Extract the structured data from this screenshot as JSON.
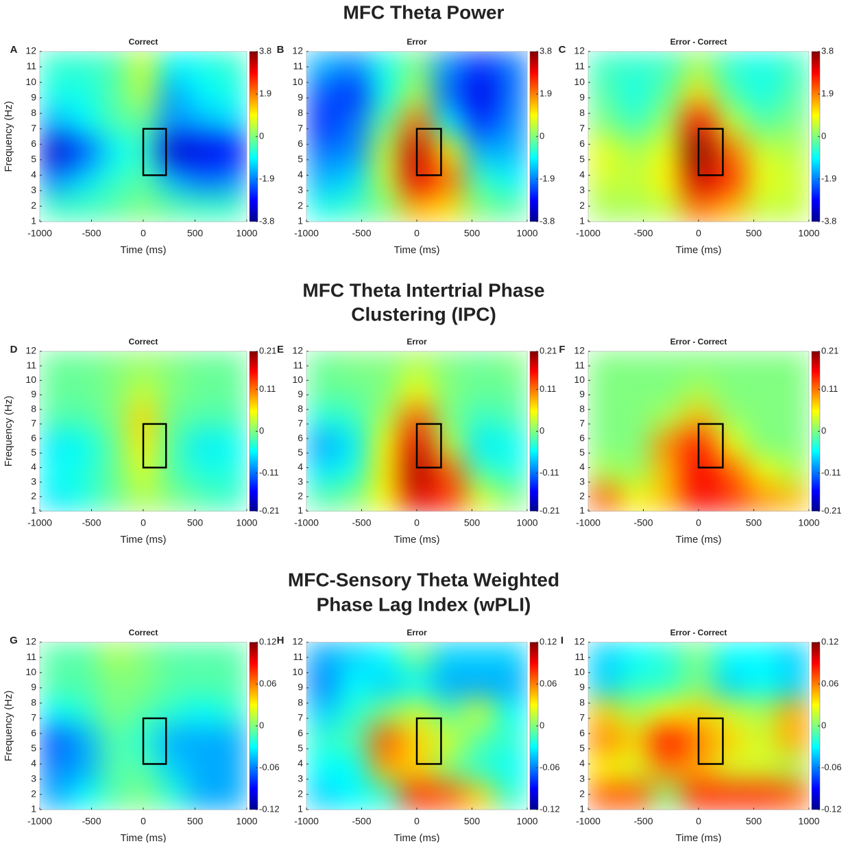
{
  "sections": [
    {
      "title": [
        "MFC Theta Power"
      ]
    },
    {
      "title": [
        "MFC Theta Intertrial Phase",
        "Clustering (IPC)"
      ]
    },
    {
      "title": [
        "MFC-Sensory Theta Weighted",
        "Phase Lag Index (wPLI)"
      ]
    }
  ],
  "chart_data": [
    {
      "type": "heatmap",
      "panel": "A",
      "title": "Correct",
      "xlabel": "Time (ms)",
      "ylabel": "Frequency (Hz)",
      "colormap": "jet",
      "xlim": [
        -1000,
        1000
      ],
      "xticks": [
        -1000,
        -500,
        0,
        500,
        1000
      ],
      "ylim": [
        1,
        12
      ],
      "yticks": [
        1,
        2,
        3,
        4,
        5,
        6,
        7,
        8,
        9,
        10,
        11,
        12
      ],
      "clim": [
        -3.8,
        3.8
      ],
      "cticks": [
        -3.8,
        -1.9,
        0,
        1.9,
        3.8
      ],
      "roi": {
        "x": [
          0,
          220
        ],
        "y": [
          4,
          7
        ]
      },
      "z": [
        [
          -0.5,
          -0.5,
          -0.3,
          0,
          -0.3,
          -0.5,
          -0.5
        ],
        [
          -1.8,
          -1.2,
          -0.6,
          -0.3,
          -1.5,
          -2,
          -1.8
        ],
        [
          -3.2,
          -2.2,
          -1,
          -0.6,
          -3.2,
          -3,
          -2.8
        ],
        [
          -1.5,
          -1,
          -0.4,
          -0.2,
          -1.8,
          -1.5,
          -1.2
        ],
        [
          -0.8,
          -0.8,
          -0.3,
          0.4,
          -1.6,
          -1,
          -0.8
        ],
        [
          -0.6,
          -0.6,
          -0.4,
          0.6,
          -1,
          -0.8,
          -0.6
        ]
      ]
    },
    {
      "type": "heatmap",
      "panel": "B",
      "title": "Error",
      "xlabel": "Time (ms)",
      "colormap": "jet",
      "xlim": [
        -1000,
        1000
      ],
      "xticks": [
        -1000,
        -500,
        0,
        500,
        1000
      ],
      "ylim": [
        1,
        12
      ],
      "yticks": [
        1,
        2,
        3,
        4,
        5,
        6,
        7,
        8,
        9,
        10,
        11,
        12
      ],
      "clim": [
        -3.8,
        3.8
      ],
      "cticks": [
        -3.8,
        -1.9,
        0,
        1.9,
        3.8
      ],
      "roi": {
        "x": [
          0,
          220
        ],
        "y": [
          4,
          7
        ]
      },
      "z": [
        [
          -0.8,
          -0.5,
          0,
          1.5,
          1.2,
          0,
          -0.3
        ],
        [
          -1.5,
          -1.2,
          0.5,
          3,
          2,
          -0.5,
          -1
        ],
        [
          -2,
          -1.8,
          0.5,
          3.3,
          1,
          -1.5,
          -1.5
        ],
        [
          -2.5,
          -2,
          -0.2,
          2,
          -1,
          -2.5,
          -1.8
        ],
        [
          -2.2,
          -2.5,
          -0.8,
          0.4,
          -2,
          -3,
          -2
        ],
        [
          -1.5,
          -1.8,
          -0.8,
          0,
          -1.8,
          -2.5,
          -2
        ]
      ]
    },
    {
      "type": "heatmap",
      "panel": "C",
      "title": "Error - Correct",
      "xlabel": "Time (ms)",
      "colormap": "jet",
      "xlim": [
        -1000,
        1000
      ],
      "xticks": [
        -1000,
        -500,
        0,
        500,
        1000
      ],
      "ylim": [
        1,
        12
      ],
      "yticks": [
        1,
        2,
        3,
        4,
        5,
        6,
        7,
        8,
        9,
        10,
        11,
        12
      ],
      "clim": [
        -3.8,
        3.8
      ],
      "cticks": [
        -3.8,
        -1.9,
        0,
        1.9,
        3.8
      ],
      "roi": {
        "x": [
          0,
          220
        ],
        "y": [
          4,
          7
        ]
      },
      "z": [
        [
          0.3,
          0.3,
          0.5,
          2,
          1.5,
          0.5,
          0.5
        ],
        [
          0.6,
          0.5,
          1,
          3.2,
          2.5,
          0.8,
          0.6
        ],
        [
          0.8,
          0.3,
          0.8,
          3.8,
          2,
          0.6,
          0.4
        ],
        [
          0,
          -0.5,
          0.3,
          2.8,
          0.6,
          -0.3,
          0
        ],
        [
          -0.3,
          -0.8,
          -0.2,
          1.2,
          -0.3,
          -0.8,
          -0.3
        ],
        [
          -0.5,
          -0.6,
          -0.5,
          0.3,
          -0.6,
          -0.8,
          -0.5
        ]
      ]
    },
    {
      "type": "heatmap",
      "panel": "D",
      "title": "Correct",
      "xlabel": "Time (ms)",
      "ylabel": "Frequency (Hz)",
      "colormap": "jet",
      "xlim": [
        -1000,
        1000
      ],
      "xticks": [
        -1000,
        -500,
        0,
        500,
        1000
      ],
      "ylim": [
        1,
        12
      ],
      "yticks": [
        1,
        2,
        3,
        4,
        5,
        6,
        7,
        8,
        9,
        10,
        11,
        12
      ],
      "clim": [
        -0.21,
        0.21
      ],
      "cticks": [
        -0.21,
        -0.11,
        0,
        0.11,
        0.21
      ],
      "roi": {
        "x": [
          0,
          220
        ],
        "y": [
          4,
          7
        ]
      },
      "z": [
        [
          -0.06,
          -0.04,
          -0.01,
          0.02,
          0,
          -0.02,
          -0.03
        ],
        [
          -0.05,
          -0.04,
          -0.01,
          0.04,
          -0.02,
          -0.04,
          -0.04
        ],
        [
          -0.06,
          -0.05,
          -0.01,
          0.06,
          -0.02,
          -0.06,
          -0.05
        ],
        [
          -0.02,
          -0.02,
          0,
          0.07,
          -0.01,
          -0.02,
          -0.02
        ],
        [
          -0.01,
          -0.01,
          0,
          0.03,
          0,
          -0.01,
          -0.01
        ],
        [
          -0.01,
          -0.01,
          0,
          0.01,
          0,
          -0.01,
          -0.01
        ]
      ]
    },
    {
      "type": "heatmap",
      "panel": "E",
      "title": "Error",
      "xlabel": "Time (ms)",
      "colormap": "jet",
      "xlim": [
        -1000,
        1000
      ],
      "xticks": [
        -1000,
        -500,
        0,
        500,
        1000
      ],
      "ylim": [
        1,
        12
      ],
      "yticks": [
        1,
        2,
        3,
        4,
        5,
        6,
        7,
        8,
        9,
        10,
        11,
        12
      ],
      "clim": [
        -0.21,
        0.21
      ],
      "cticks": [
        -0.21,
        -0.11,
        0,
        0.11,
        0.21
      ],
      "roi": {
        "x": [
          0,
          220
        ],
        "y": [
          4,
          7
        ]
      },
      "z": [
        [
          -0.02,
          0,
          0.05,
          0.17,
          0.14,
          0.04,
          0
        ],
        [
          -0.06,
          -0.04,
          0.06,
          0.19,
          0.12,
          -0.02,
          -0.04
        ],
        [
          -0.09,
          -0.06,
          0.05,
          0.17,
          0.03,
          -0.06,
          -0.05
        ],
        [
          -0.04,
          -0.03,
          0.02,
          0.12,
          0,
          -0.03,
          -0.02
        ],
        [
          -0.01,
          -0.01,
          0,
          0.05,
          0,
          -0.01,
          -0.01
        ],
        [
          -0.01,
          0,
          0,
          0.02,
          0,
          -0.01,
          0
        ]
      ]
    },
    {
      "type": "heatmap",
      "panel": "F",
      "title": "Error - Correct",
      "xlabel": "Time (ms)",
      "colormap": "jet",
      "xlim": [
        -1000,
        1000
      ],
      "xticks": [
        -1000,
        -500,
        0,
        500,
        1000
      ],
      "ylim": [
        1,
        12
      ],
      "yticks": [
        1,
        2,
        3,
        4,
        5,
        6,
        7,
        8,
        9,
        10,
        11,
        12
      ],
      "clim": [
        -0.21,
        0.21
      ],
      "cticks": [
        -0.21,
        -0.11,
        0,
        0.11,
        0.21
      ],
      "roi": {
        "x": [
          0,
          220
        ],
        "y": [
          4,
          7
        ]
      },
      "z": [
        [
          0.12,
          0.05,
          0.08,
          0.16,
          0.14,
          0.1,
          0.08
        ],
        [
          0.02,
          0.01,
          0.08,
          0.16,
          0.12,
          0.05,
          0.02
        ],
        [
          0,
          0,
          0.1,
          0.15,
          0.05,
          0,
          0
        ],
        [
          0,
          0,
          0.02,
          0.08,
          0.01,
          0,
          0
        ],
        [
          0,
          0,
          0,
          0.02,
          0,
          0,
          0
        ],
        [
          0,
          0,
          0,
          0,
          0,
          0,
          0
        ]
      ]
    },
    {
      "type": "heatmap",
      "panel": "G",
      "title": "Correct",
      "xlabel": "Time (ms)",
      "ylabel": "Frequency (Hz)",
      "colormap": "jet",
      "xlim": [
        -1000,
        1000
      ],
      "xticks": [
        -1000,
        -500,
        0,
        500,
        1000
      ],
      "ylim": [
        1,
        12
      ],
      "yticks": [
        1,
        2,
        3,
        4,
        5,
        6,
        7,
        8,
        9,
        10,
        11,
        12
      ],
      "clim": [
        -0.12,
        0.12
      ],
      "cticks": [
        -0.12,
        -0.06,
        0,
        0.06,
        0.12
      ],
      "roi": {
        "x": [
          0,
          220
        ],
        "y": [
          4,
          7
        ]
      },
      "z": [
        [
          -0.05,
          -0.03,
          -0.01,
          0,
          -0.02,
          -0.05,
          -0.05
        ],
        [
          -0.06,
          -0.05,
          -0.01,
          -0.01,
          -0.04,
          -0.05,
          -0.05
        ],
        [
          -0.07,
          -0.05,
          -0.01,
          -0.02,
          -0.05,
          -0.05,
          -0.05
        ],
        [
          -0.03,
          -0.02,
          0,
          -0.01,
          -0.02,
          -0.03,
          -0.02
        ],
        [
          -0.01,
          -0.01,
          0,
          0,
          -0.01,
          -0.01,
          -0.01
        ],
        [
          -0.01,
          -0.01,
          0.01,
          0,
          -0.01,
          -0.01,
          -0.01
        ]
      ]
    },
    {
      "type": "heatmap",
      "panel": "H",
      "title": "Error",
      "xlabel": "Time (ms)",
      "colormap": "jet",
      "xlim": [
        -1000,
        1000
      ],
      "xticks": [
        -1000,
        -500,
        0,
        500,
        1000
      ],
      "ylim": [
        1,
        12
      ],
      "yticks": [
        1,
        2,
        3,
        4,
        5,
        6,
        7,
        8,
        9,
        10,
        11,
        12
      ],
      "clim": [
        -0.12,
        0.12
      ],
      "cticks": [
        -0.12,
        -0.06,
        0,
        0.06,
        0.12
      ],
      "roi": {
        "x": [
          0,
          220
        ],
        "y": [
          4,
          7
        ]
      },
      "z": [
        [
          -0.04,
          -0.03,
          -0.02,
          0.08,
          0.07,
          0.04,
          -0.02
        ],
        [
          -0.03,
          -0.03,
          0.05,
          0.04,
          0,
          -0.02,
          -0.03
        ],
        [
          -0.02,
          -0.01,
          0.07,
          0.04,
          0.02,
          -0.01,
          -0.02
        ],
        [
          -0.04,
          -0.02,
          0,
          0.02,
          -0.01,
          0.02,
          -0.03
        ],
        [
          -0.06,
          -0.03,
          -0.04,
          -0.03,
          -0.05,
          -0.05,
          -0.05
        ],
        [
          -0.05,
          -0.04,
          -0.03,
          0,
          -0.04,
          -0.04,
          -0.04
        ]
      ]
    },
    {
      "type": "heatmap",
      "panel": "I",
      "title": "Error - Correct",
      "xlabel": "Time (ms)",
      "colormap": "jet",
      "xlim": [
        -1000,
        1000
      ],
      "xticks": [
        -1000,
        -500,
        0,
        500,
        1000
      ],
      "ylim": [
        1,
        12
      ],
      "yticks": [
        1,
        2,
        3,
        4,
        5,
        6,
        7,
        8,
        9,
        10,
        11,
        12
      ],
      "clim": [
        -0.12,
        0.12
      ],
      "cticks": [
        -0.12,
        -0.06,
        0,
        0.06,
        0.12
      ],
      "roi": {
        "x": [
          0,
          220
        ],
        "y": [
          4,
          7
        ]
      },
      "z": [
        [
          0.07,
          0.07,
          0,
          0.08,
          0.08,
          0.08,
          0.07
        ],
        [
          0.03,
          0.02,
          0.06,
          0.05,
          0.02,
          0.02,
          0.01
        ],
        [
          0.06,
          0.04,
          0.09,
          0.06,
          0.04,
          0.02,
          0.05
        ],
        [
          0.04,
          0.01,
          0.03,
          0.04,
          0.02,
          0.01,
          0.05
        ],
        [
          -0.04,
          -0.02,
          -0.02,
          0,
          -0.04,
          -0.03,
          -0.04
        ],
        [
          -0.04,
          -0.03,
          -0.02,
          0,
          -0.03,
          -0.03,
          -0.04
        ]
      ]
    }
  ]
}
